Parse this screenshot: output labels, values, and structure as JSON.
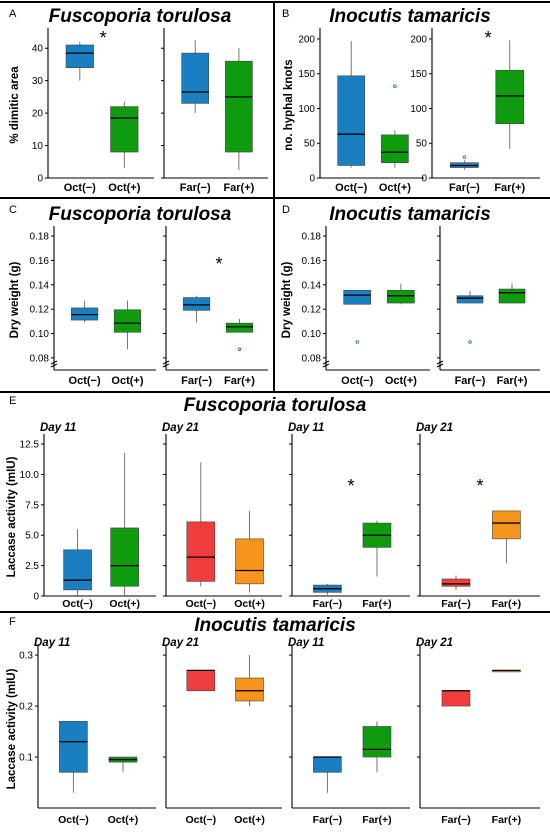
{
  "panel_letters": {
    "A": "A",
    "B": "B",
    "C": "C",
    "D": "D",
    "E": "E",
    "F": "F"
  },
  "titles": {
    "A": "Fuscoporia torulosa",
    "B": "Inocutis tamaricis",
    "C": "Fuscoporia torulosa",
    "D": "Inocutis tamaricis",
    "E": "Fuscoporia torulosa",
    "F": "Inocutis tamaricis"
  },
  "colors": {
    "blue": "#1a7fc1",
    "green": "#0e9b0e",
    "red": "#ef3c3c",
    "orange": "#f7941e",
    "axis": "#000000"
  },
  "chart_data": [
    {
      "id": "A",
      "type": "box",
      "ylabel": "% dimitic area",
      "ylim": [
        0,
        45
      ],
      "ticks": [
        0,
        10,
        20,
        30,
        40
      ],
      "groups": [
        {
          "header": "",
          "boxes": [
            {
              "label": "Oct(−)",
              "color": "blue",
              "whislo": 30,
              "q1": 34,
              "med": 38.5,
              "q3": 41,
              "whishi": 42,
              "fliers": []
            },
            {
              "label": "Oct(+)",
              "color": "green",
              "whislo": 3,
              "q1": 8,
              "med": 18.5,
              "q3": 22,
              "whishi": 23.5,
              "fliers": []
            }
          ],
          "star": "*"
        },
        {
          "header": "",
          "boxes": [
            {
              "label": "Far(−)",
              "color": "blue",
              "whislo": 20,
              "q1": 23,
              "med": 26.5,
              "q3": 38.5,
              "whishi": 42.5,
              "fliers": []
            },
            {
              "label": "Far(+)",
              "color": "green",
              "whislo": 2.5,
              "q1": 8,
              "med": 25,
              "q3": 36,
              "whishi": 40,
              "fliers": []
            }
          ],
          "star": ""
        }
      ]
    },
    {
      "id": "B",
      "type": "box",
      "ylabel": "no. hyphal knots",
      "ylim": [
        0,
        210
      ],
      "ticks": [
        0,
        50,
        100,
        150,
        200
      ],
      "groups": [
        {
          "header": "",
          "boxes": [
            {
              "label": "Oct(−)",
              "color": "blue",
              "whislo": 15,
              "q1": 18,
              "med": 63,
              "q3": 147,
              "whishi": 197,
              "fliers": []
            },
            {
              "label": "Oct(+)",
              "color": "green",
              "whislo": 15,
              "q1": 22,
              "med": 37,
              "q3": 62,
              "whishi": 68,
              "fliers": [
                132
              ]
            }
          ],
          "star": ""
        },
        {
          "header": "",
          "boxes": [
            {
              "label": "Far(−)",
              "color": "blue",
              "whislo": 12,
              "q1": 15,
              "med": 18,
              "q3": 22,
              "whishi": 25,
              "fliers": [
                30
              ]
            },
            {
              "label": "Far(+)",
              "color": "green",
              "whislo": 42,
              "q1": 78,
              "med": 118,
              "q3": 155,
              "whishi": 198,
              "fliers": []
            }
          ],
          "star": "*"
        }
      ]
    },
    {
      "id": "C",
      "type": "box",
      "ylabel": "Dry weight (g)",
      "ylim": [
        0.07,
        0.185
      ],
      "ticks": [
        0.08,
        0.1,
        0.12,
        0.14,
        0.16,
        0.18
      ],
      "tick_labels": [
        "0.08",
        "0.10",
        "0.12",
        "0.14",
        "0.16",
        "0.18"
      ],
      "axis_break": true,
      "groups": [
        {
          "header": "",
          "boxes": [
            {
              "label": "Oct(−)",
              "color": "blue",
              "whislo": 0.109,
              "q1": 0.111,
              "med": 0.1155,
              "q3": 0.121,
              "whishi": 0.127,
              "fliers": []
            },
            {
              "label": "Oct(+)",
              "color": "green",
              "whislo": 0.087,
              "q1": 0.101,
              "med": 0.1085,
              "q3": 0.1195,
              "whishi": 0.127,
              "fliers": []
            }
          ],
          "star": ""
        },
        {
          "header": "",
          "boxes": [
            {
              "label": "Far(−)",
              "color": "blue",
              "whislo": 0.109,
              "q1": 0.119,
              "med": 0.1235,
              "q3": 0.1295,
              "whishi": 0.131,
              "fliers": []
            },
            {
              "label": "Far(+)",
              "color": "green",
              "whislo": 0.101,
              "q1": 0.101,
              "med": 0.1055,
              "q3": 0.1085,
              "whishi": 0.112,
              "fliers": [
                0.087
              ]
            }
          ],
          "star": "*"
        }
      ]
    },
    {
      "id": "D",
      "type": "box",
      "ylabel": "Dry weight (g)",
      "ylim": [
        0.07,
        0.185
      ],
      "ticks": [
        0.08,
        0.1,
        0.12,
        0.14,
        0.16,
        0.18
      ],
      "tick_labels": [
        "0.08",
        "0.10",
        "0.12",
        "0.14",
        "0.16",
        "0.18"
      ],
      "axis_break": true,
      "groups": [
        {
          "header": "",
          "boxes": [
            {
              "label": "Oct(−)",
              "color": "blue",
              "whislo": 0.124,
              "q1": 0.124,
              "med": 0.1315,
              "q3": 0.1355,
              "whishi": 0.1355,
              "fliers": [
                0.093
              ]
            },
            {
              "label": "Oct(+)",
              "color": "green",
              "whislo": 0.124,
              "q1": 0.125,
              "med": 0.131,
              "q3": 0.1355,
              "whishi": 0.141,
              "fliers": []
            }
          ],
          "star": ""
        },
        {
          "header": "",
          "boxes": [
            {
              "label": "Far(−)",
              "color": "blue",
              "whislo": 0.125,
              "q1": 0.125,
              "med": 0.129,
              "q3": 0.131,
              "whishi": 0.135,
              "fliers": [
                0.093
              ]
            },
            {
              "label": "Far(+)",
              "color": "green",
              "whislo": 0.125,
              "q1": 0.125,
              "med": 0.1335,
              "q3": 0.1365,
              "whishi": 0.141,
              "fliers": []
            }
          ],
          "star": ""
        }
      ]
    },
    {
      "id": "E",
      "type": "box",
      "ylabel": "Laccase activity (mIU)",
      "ylim": [
        0,
        13
      ],
      "ticks": [
        0,
        2.5,
        5.0,
        7.5,
        10.0,
        12.5
      ],
      "tick_labels": [
        "0",
        "2.5",
        "5.0",
        "7.5",
        "10.0",
        "12.5"
      ],
      "groups": [
        {
          "header": "Day 11",
          "boxes": [
            {
              "label": "Oct(−)",
              "color": "blue",
              "whislo": 0,
              "q1": 0.5,
              "med": 1.3,
              "q3": 3.8,
              "whishi": 5.5,
              "fliers": []
            },
            {
              "label": "Oct(+)",
              "color": "green",
              "whislo": 0,
              "q1": 0.8,
              "med": 2.5,
              "q3": 5.6,
              "whishi": 11.8,
              "fliers": []
            }
          ],
          "star": ""
        },
        {
          "header": "Day 21",
          "boxes": [
            {
              "label": "Oct(−)",
              "color": "red",
              "whislo": 0.8,
              "q1": 1.2,
              "med": 3.2,
              "q3": 6.1,
              "whishi": 11.0,
              "fliers": []
            },
            {
              "label": "Oct(+)",
              "color": "orange",
              "whislo": 0.3,
              "q1": 1.0,
              "med": 2.1,
              "q3": 4.7,
              "whishi": 7.0,
              "fliers": []
            }
          ],
          "star": ""
        },
        {
          "header": "Day 11",
          "boxes": [
            {
              "label": "Far(−)",
              "color": "blue",
              "whislo": 0.1,
              "q1": 0.3,
              "med": 0.6,
              "q3": 0.9,
              "whishi": 1.0,
              "fliers": []
            },
            {
              "label": "Far(+)",
              "color": "green",
              "whislo": 1.6,
              "q1": 4.0,
              "med": 5.0,
              "q3": 6.0,
              "whishi": 6.2,
              "fliers": []
            }
          ],
          "star": "*"
        },
        {
          "header": "Day 21",
          "boxes": [
            {
              "label": "Far(−)",
              "color": "red",
              "whislo": 0.5,
              "q1": 0.8,
              "med": 1.0,
              "q3": 1.4,
              "whishi": 1.7,
              "fliers": []
            },
            {
              "label": "Far(+)",
              "color": "orange",
              "whislo": 2.7,
              "q1": 4.7,
              "med": 6.0,
              "q3": 7.0,
              "whishi": 7.0,
              "fliers": []
            }
          ],
          "star": "*"
        }
      ]
    },
    {
      "id": "F",
      "type": "box",
      "ylabel": "Laccase activity (mIU)",
      "ylim": [
        0,
        0.31
      ],
      "ticks": [
        0.1,
        0.2,
        0.3
      ],
      "tick_labels": [
        "0.1",
        "0.2",
        "0.3"
      ],
      "groups": [
        {
          "header": "Day 11",
          "boxes": [
            {
              "label": "Oct(−)",
              "color": "blue",
              "whislo": 0.03,
              "q1": 0.07,
              "med": 0.13,
              "q3": 0.17,
              "whishi": 0.17,
              "fliers": []
            },
            {
              "label": "Oct(+)",
              "color": "green",
              "whislo": 0.07,
              "q1": 0.09,
              "med": 0.095,
              "q3": 0.1,
              "whishi": 0.1,
              "fliers": []
            }
          ],
          "star": ""
        },
        {
          "header": "Day 21",
          "boxes": [
            {
              "label": "Oct(−)",
              "color": "red",
              "whislo": 0.23,
              "q1": 0.23,
              "med": 0.27,
              "q3": 0.27,
              "whishi": 0.27,
              "fliers": []
            },
            {
              "label": "Oct(+)",
              "color": "orange",
              "whislo": 0.2,
              "q1": 0.21,
              "med": 0.23,
              "q3": 0.255,
              "whishi": 0.3,
              "fliers": []
            }
          ],
          "star": ""
        },
        {
          "header": "Day 11",
          "boxes": [
            {
              "label": "Far(−)",
              "color": "blue",
              "whislo": 0.03,
              "q1": 0.07,
              "med": 0.1,
              "q3": 0.1,
              "whishi": 0.1,
              "fliers": []
            },
            {
              "label": "Far(+)",
              "color": "green",
              "whislo": 0.07,
              "q1": 0.1,
              "med": 0.115,
              "q3": 0.16,
              "whishi": 0.17,
              "fliers": []
            }
          ],
          "star": ""
        },
        {
          "header": "Day 21",
          "boxes": [
            {
              "label": "Far(−)",
              "color": "red",
              "whislo": 0.2,
              "q1": 0.2,
              "med": 0.23,
              "q3": 0.23,
              "whishi": 0.23,
              "fliers": []
            },
            {
              "label": "Far(+)",
              "color": "orange",
              "whislo": 0.27,
              "q1": 0.27,
              "med": 0.27,
              "q3": 0.27,
              "whishi": 0.27,
              "fliers": []
            }
          ],
          "star": ""
        }
      ]
    }
  ]
}
